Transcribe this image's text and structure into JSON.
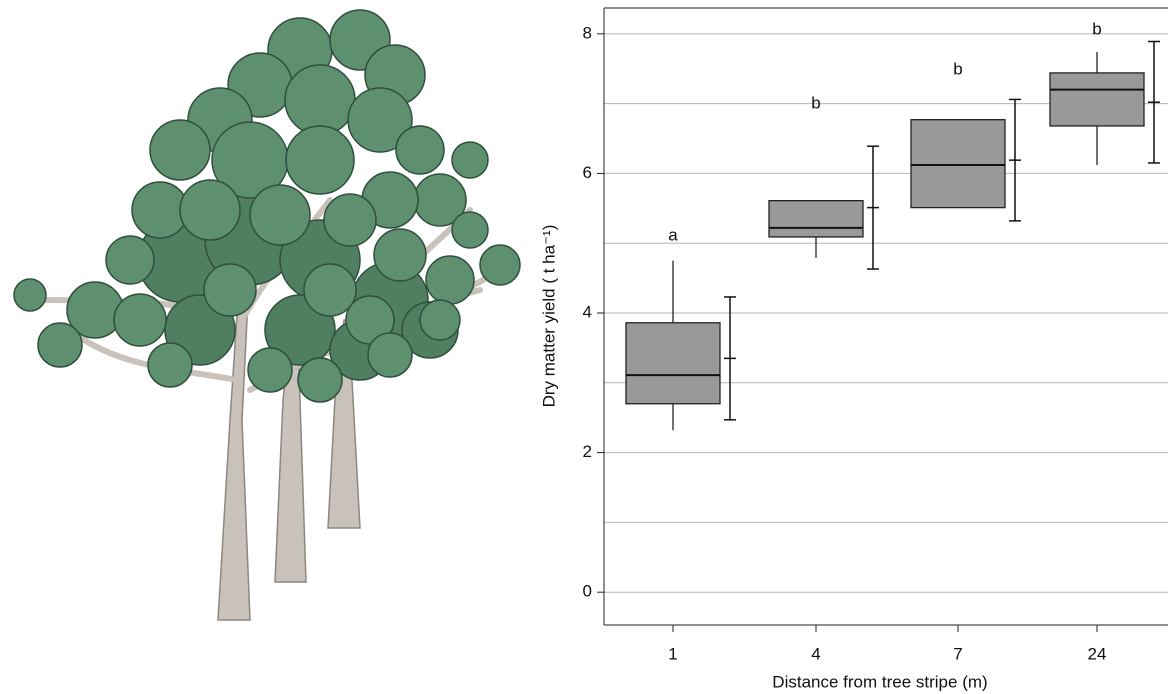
{
  "chart_data": {
    "type": "box",
    "x_label": "Distance from tree stripe (m)",
    "y_label": "Dry matter yield ( t ha⁻¹)",
    "categories": [
      "1",
      "4",
      "7",
      "24"
    ],
    "whisker_low": [
      2.32,
      4.79,
      5.51,
      6.12
    ],
    "q1": [
      2.7,
      5.09,
      5.51,
      6.68
    ],
    "median": [
      3.11,
      5.22,
      6.12,
      7.2
    ],
    "q3": [
      3.86,
      5.61,
      6.77,
      7.44
    ],
    "whisker_high": [
      4.75,
      5.61,
      6.77,
      7.74
    ],
    "means": [
      3.35,
      5.51,
      6.19,
      7.02
    ],
    "errors": [
      0.88,
      0.88,
      0.87,
      0.87
    ],
    "annotations": [
      "a",
      "b",
      "b",
      "b"
    ],
    "box_color": "#999999",
    "ylim": [
      -0.47,
      8.37
    ],
    "yticks": [
      0,
      2,
      4,
      6,
      8
    ],
    "grid_values": [
      0,
      1,
      2,
      3,
      4,
      5,
      6,
      7,
      8
    ],
    "grid": true
  }
}
